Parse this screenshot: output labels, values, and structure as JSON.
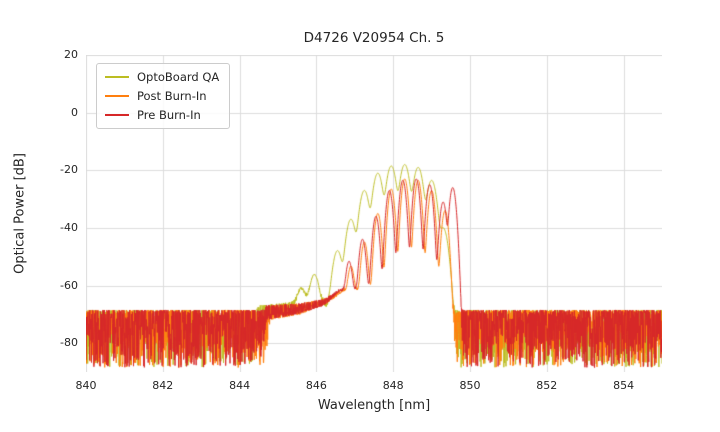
{
  "chart_data": {
    "type": "line",
    "title": "D4726 V20954 Ch. 5",
    "xlabel": "Wavelength [nm]",
    "ylabel": "Optical Power [dB]",
    "xlim": [
      840,
      855
    ],
    "ylim": [
      -90,
      20
    ],
    "xticks": [
      840,
      842,
      844,
      846,
      848,
      850,
      852,
      854
    ],
    "yticks": [
      -80,
      -60,
      -40,
      -20,
      0,
      20
    ],
    "grid": true,
    "grid_color": "#dcdcdc",
    "legend_position": "upper left",
    "noise": {
      "top_db": -68.5,
      "spread_db": 20,
      "samples": 2400
    },
    "series": [
      {
        "name": "OptoBoard QA",
        "color": "#bcbd22",
        "seed": 101,
        "mode_sigma_nm": 0.075,
        "pedestal_db": [
          [
            840,
            -120
          ],
          [
            844.1,
            -120
          ],
          [
            844.5,
            -72
          ],
          [
            845.3,
            -69
          ],
          [
            845.9,
            -64
          ],
          [
            846.3,
            -68
          ],
          [
            846.6,
            -63
          ],
          [
            849.1,
            -60
          ],
          [
            849.35,
            -64
          ],
          [
            849.55,
            -80
          ],
          [
            849.7,
            -120
          ],
          [
            855,
            -120
          ]
        ],
        "modes": [
          [
            845.6,
            -63
          ],
          [
            845.95,
            -57
          ],
          [
            846.55,
            -48
          ],
          [
            846.9,
            -37
          ],
          [
            847.25,
            -27
          ],
          [
            847.6,
            -21
          ],
          [
            847.95,
            -18.5
          ],
          [
            848.3,
            -18
          ],
          [
            848.65,
            -19
          ],
          [
            849.0,
            -23.5
          ],
          [
            849.3,
            -40
          ]
        ]
      },
      {
        "name": "Post Burn-In",
        "color": "#ff7f0e",
        "seed": 202,
        "mode_sigma_nm": 0.05,
        "pedestal_db": [
          [
            840,
            -120
          ],
          [
            844.4,
            -120
          ],
          [
            844.8,
            -72
          ],
          [
            845.6,
            -70
          ],
          [
            846.3,
            -66
          ],
          [
            846.7,
            -62
          ],
          [
            849.3,
            -61
          ],
          [
            849.55,
            -70
          ],
          [
            849.75,
            -120
          ],
          [
            855,
            -120
          ]
        ],
        "modes": [
          [
            846.9,
            -54
          ],
          [
            847.25,
            -45
          ],
          [
            847.6,
            -35
          ],
          [
            847.95,
            -26.5
          ],
          [
            848.3,
            -23
          ],
          [
            848.65,
            -23.5
          ],
          [
            849.0,
            -27
          ],
          [
            849.35,
            -34
          ]
        ]
      },
      {
        "name": "Pre Burn-In",
        "color": "#d62728",
        "seed": 303,
        "mode_sigma_nm": 0.05,
        "pedestal_db": [
          [
            840,
            -120
          ],
          [
            844.3,
            -120
          ],
          [
            844.7,
            -72
          ],
          [
            845.5,
            -70
          ],
          [
            846.2,
            -67
          ],
          [
            846.6,
            -62
          ],
          [
            849.45,
            -60
          ],
          [
            849.7,
            -78
          ],
          [
            849.85,
            -120
          ],
          [
            855,
            -120
          ]
        ],
        "modes": [
          [
            846.85,
            -52
          ],
          [
            847.2,
            -44
          ],
          [
            847.55,
            -36
          ],
          [
            847.9,
            -27
          ],
          [
            848.25,
            -23.5
          ],
          [
            848.6,
            -23
          ],
          [
            848.95,
            -25
          ],
          [
            849.3,
            -31
          ],
          [
            849.55,
            -26
          ]
        ]
      }
    ]
  }
}
